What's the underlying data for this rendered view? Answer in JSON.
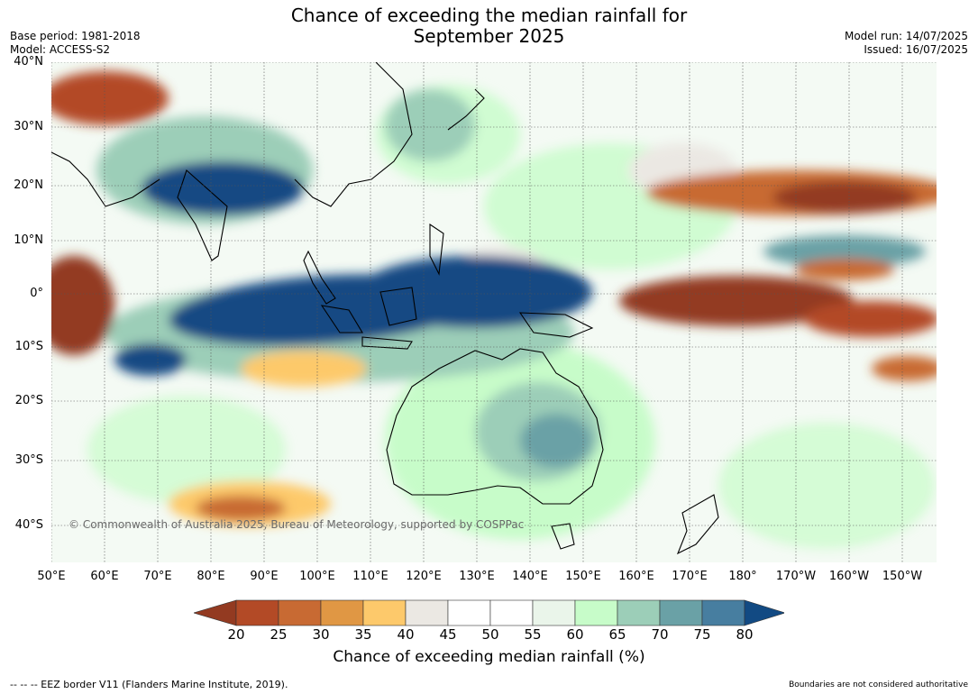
{
  "title_line1": "Chance of exceeding the median rainfall for",
  "title_line2": "September 2025",
  "meta_left": [
    "Base period: 1981-2018",
    "Model: ACCESS-S2"
  ],
  "meta_right": [
    "Model run: 14/07/2025",
    "Issued: 16/07/2025"
  ],
  "copyright": "© Commonwealth of Australia 2025, Bureau of Meteorology, supported by COSPPac",
  "lat_labels": [
    "40°N",
    "30°N",
    "20°N",
    "10°N",
    "0°",
    "10°S",
    "20°S",
    "30°S",
    "40°S"
  ],
  "lon_labels": [
    "50°E",
    "60°E",
    "70°E",
    "80°E",
    "90°E",
    "100°E",
    "110°E",
    "120°E",
    "130°E",
    "140°E",
    "150°E",
    "160°E",
    "170°E",
    "180°",
    "170°W",
    "160°W",
    "150°W"
  ],
  "colorbar": {
    "ticks": [
      "20",
      "25",
      "30",
      "35",
      "40",
      "45",
      "50",
      "55",
      "60",
      "65",
      "70",
      "75",
      "80"
    ],
    "colors": [
      "#933a21",
      "#b34a26",
      "#c86a33",
      "#e09744",
      "#fdc96b",
      "#ebe8e3",
      "#ffffff",
      "#ffffff",
      "#eaf5ea",
      "#c7fcc9",
      "#9cceb8",
      "#6aa1a6",
      "#477ea0",
      "#124a83"
    ],
    "title": "Chance of exceeding median rainfall (%)"
  },
  "footer_left": "--  --  -- EEZ border V11 (Flanders Marine Institute, 2019).",
  "footer_right": "Boundaries are not considered authoritative",
  "map_colors": {
    "ocean_base": "#f4faf4",
    "very_wet": "#124a83",
    "wet": "#477ea0",
    "moist": "#9cceb8",
    "light_green": "#c7fcc9",
    "dry": "#b34a26",
    "very_dry": "#933a21",
    "orange": "#c86a33",
    "yellow": "#fdc96b",
    "grey": "#ebe8e3"
  }
}
